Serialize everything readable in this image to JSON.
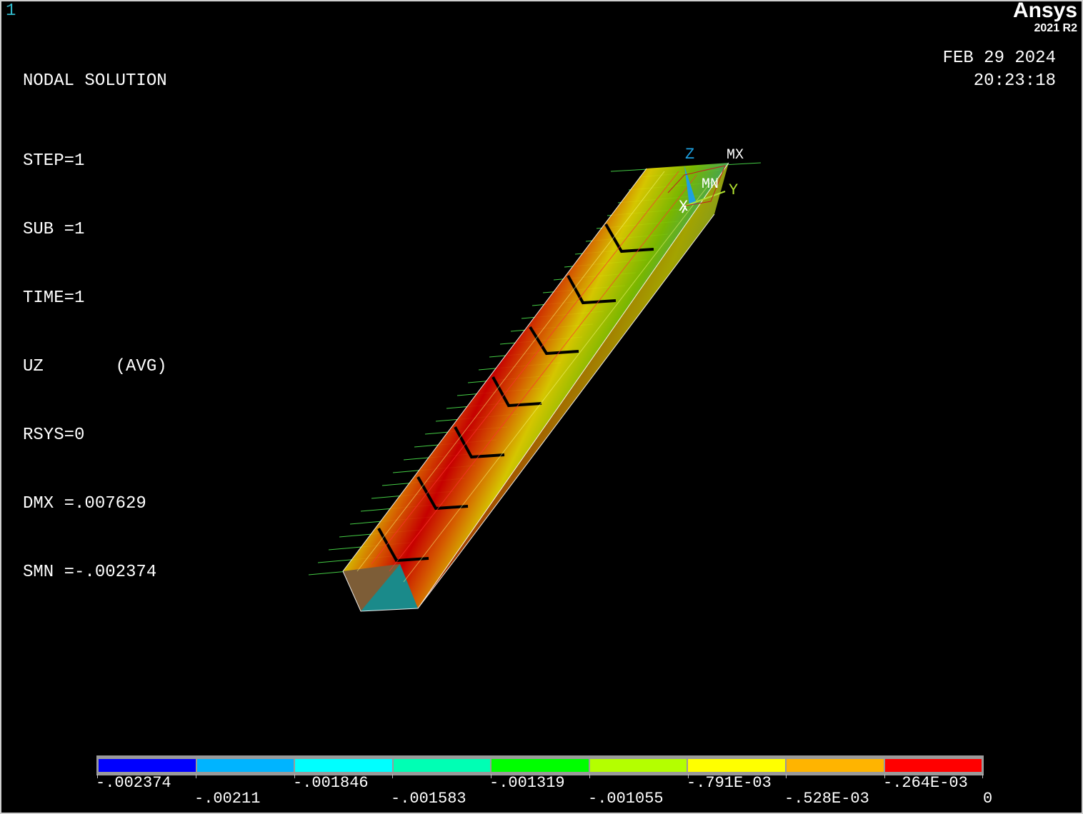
{
  "window": {
    "number": "1"
  },
  "brand": {
    "name": "Ansys",
    "version": "2021 R2"
  },
  "info": {
    "title": "NODAL SOLUTION",
    "lines": [
      "STEP=1",
      "SUB =1",
      "TIME=1",
      "UZ       (AVG)",
      "RSYS=0",
      "DMX =.007629",
      "SMN =-.002374"
    ]
  },
  "datetime": {
    "date": "FEB 29 2024",
    "time": "20:23:18"
  },
  "triad": {
    "z": "Z",
    "y": "Y",
    "x": "X",
    "mx": "MX",
    "mn": "MN"
  },
  "legend": {
    "colors": [
      "#0000ff",
      "#00b4ff",
      "#00ffff",
      "#00ffb4",
      "#00ff00",
      "#b4ff00",
      "#ffff00",
      "#ffb400",
      "#ff0000"
    ],
    "labels": [
      "-.002374",
      "-.00211",
      "-.001846",
      "-.001583",
      "-.001319",
      "-.001055",
      "-.791E-03",
      "-.528E-03",
      "-.264E-03",
      "0"
    ]
  }
}
